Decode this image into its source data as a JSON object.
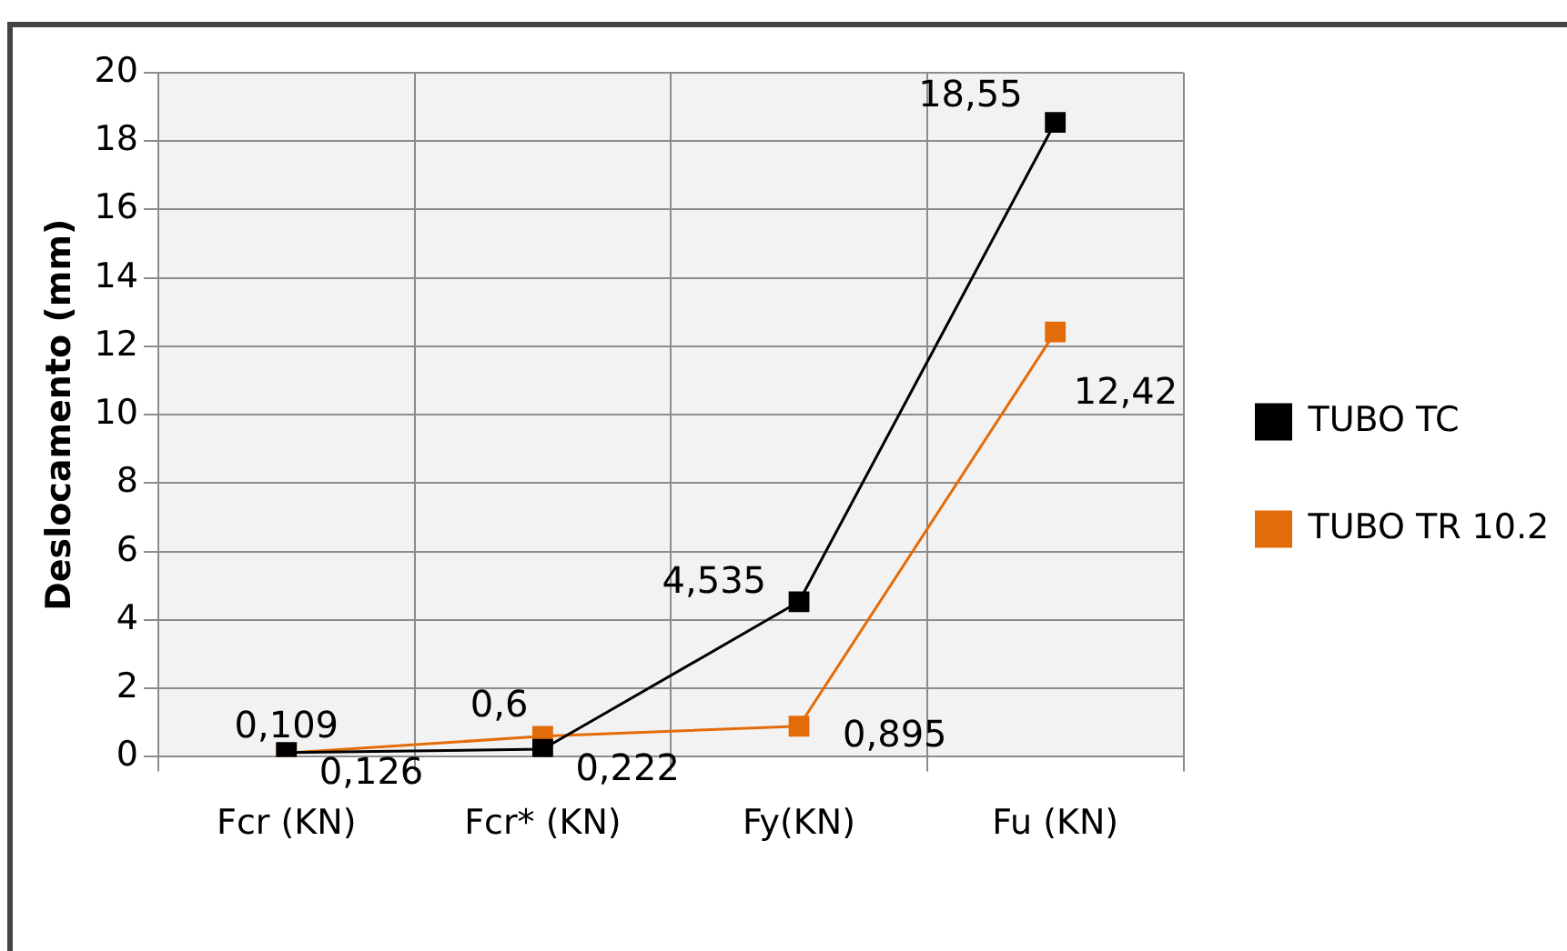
{
  "chart_data": {
    "type": "line",
    "ylabel": "Deslocamento (mm)",
    "categories": [
      "Fcr (KN)",
      "Fcr* (KN)",
      "Fy(KN)",
      "Fu (KN)"
    ],
    "series": [
      {
        "name": "TUBO TC",
        "color": "#000000",
        "values": [
          0.126,
          0.222,
          4.535,
          18.55
        ],
        "value_labels": [
          "0,126",
          "0,222",
          "4,535",
          "18,55"
        ]
      },
      {
        "name": "TUBO TR 10.2",
        "color": "#e36c0a",
        "values": [
          0.109,
          0.6,
          0.895,
          12.42
        ],
        "value_labels": [
          "0,109",
          "0,6",
          "0,895",
          "12,42"
        ]
      }
    ],
    "ylim": [
      0,
      20
    ],
    "yticks": [
      0,
      2,
      4,
      6,
      8,
      10,
      12,
      14,
      16,
      18,
      20
    ],
    "grid": true,
    "legend": "right",
    "marker": "square",
    "line_style": "solid"
  }
}
